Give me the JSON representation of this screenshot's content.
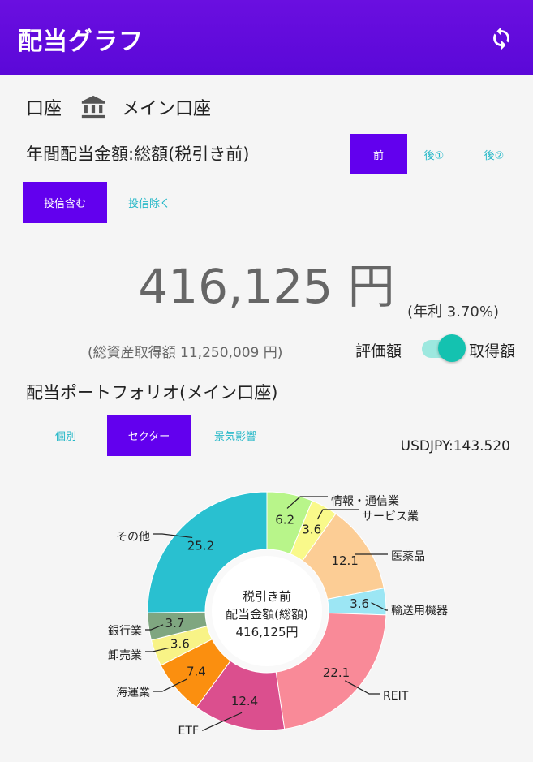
{
  "appbar": {
    "title": "配当グラフ",
    "refresh_icon": "refresh-icon"
  },
  "account": {
    "label": "口座",
    "icon": "bank-icon",
    "name": "メイン口座"
  },
  "summary": {
    "label": "年間配当金額:総額(税引き前)",
    "tax_tabs": [
      "前",
      "後①",
      "後②"
    ],
    "tax_selected": 0,
    "fund_tabs": [
      "投信含む",
      "投信除く"
    ],
    "fund_selected": 0,
    "amount": "416,125 円",
    "yield": "(年利 3.70%)",
    "asset_total": "(総資産取得額 11,250,009 円)",
    "toggle_left": "評価額",
    "toggle_right": "取得額",
    "toggle_on": true
  },
  "portfolio": {
    "title": "配当ポートフォリオ(メイン口座)",
    "view_tabs": [
      "個別",
      "セクター",
      "景気影響"
    ],
    "view_selected": 1,
    "usdjpy": "USDJPY:143.520"
  },
  "chart_data": {
    "type": "pie",
    "center_text": [
      "税引き前",
      "配当金額(総額)",
      "416,125円"
    ],
    "slices": [
      {
        "label": "情報・通信業",
        "value": 6.2,
        "color": "#b8f58a"
      },
      {
        "label": "サービス業",
        "value": 3.6,
        "color": "#f9f98a"
      },
      {
        "label": "医薬品",
        "value": 12.1,
        "color": "#fccd95"
      },
      {
        "label": "輸送用機器",
        "value": 3.6,
        "color": "#9ce6f4"
      },
      {
        "label": "REIT",
        "value": 22.1,
        "color": "#f98a98"
      },
      {
        "label": "ETF",
        "value": 12.4,
        "color": "#db4f8e"
      },
      {
        "label": "海運業",
        "value": 7.4,
        "color": "#fb8f0f"
      },
      {
        "label": "卸売業",
        "value": 3.6,
        "color": "#f8f386"
      },
      {
        "label": "銀行業",
        "value": 3.7,
        "color": "#7fa680"
      },
      {
        "label": "その他",
        "value": 25.2,
        "color": "#29c0d0"
      }
    ]
  }
}
